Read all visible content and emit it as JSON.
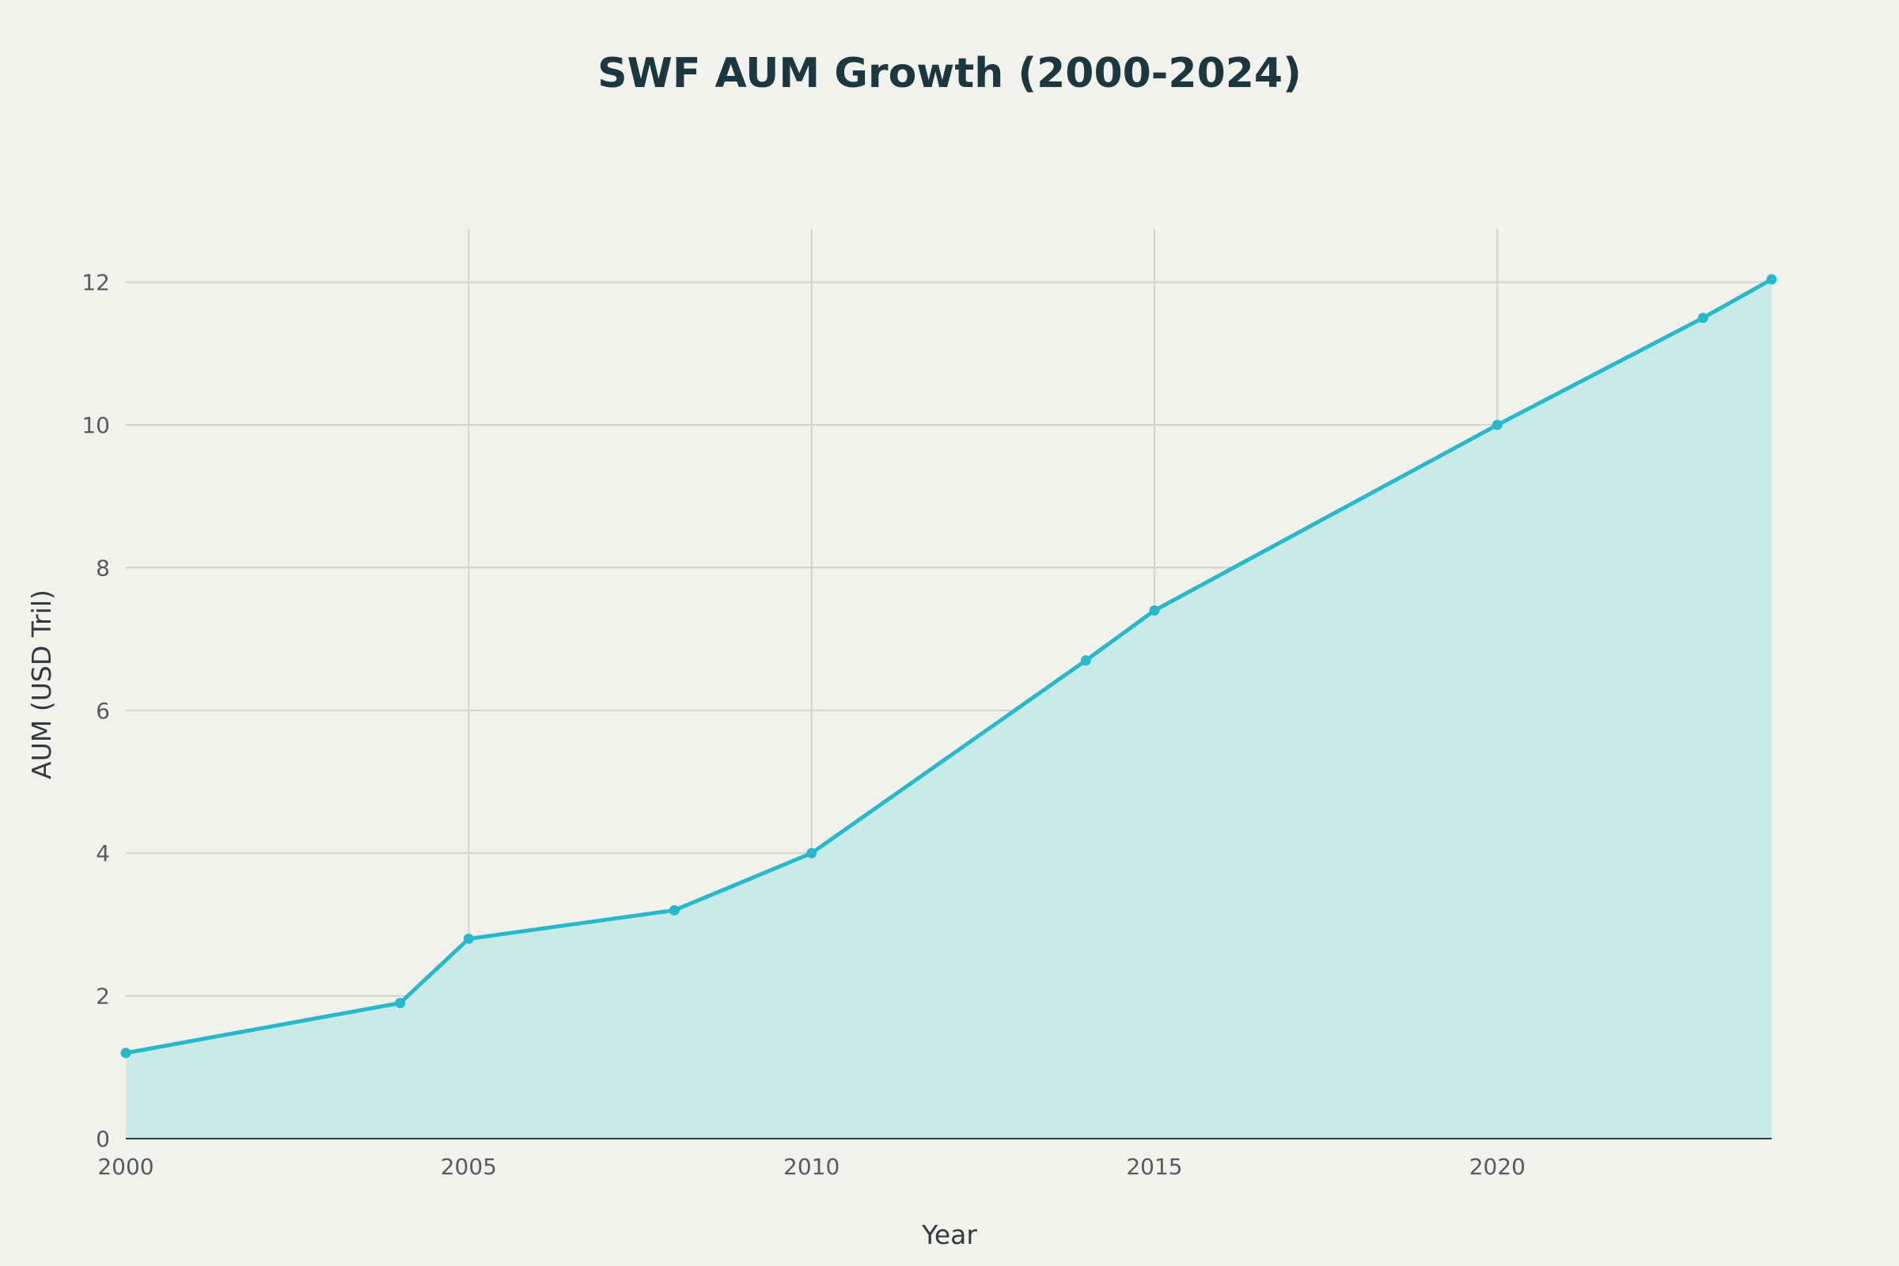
{
  "chart_data": {
    "type": "area",
    "title": "SWF AUM Growth (2000-2024)",
    "xlabel": "Year",
    "ylabel": "AUM (USD Tril)",
    "x": [
      2000,
      2004,
      2005,
      2008,
      2010,
      2014,
      2015,
      2020,
      2023,
      2024
    ],
    "series": [
      {
        "values": [
          1.2,
          1.9,
          2.8,
          3.2,
          4.0,
          6.7,
          7.4,
          10.0,
          11.5,
          12.04
        ]
      }
    ],
    "xlim": [
      2000,
      2024
    ],
    "ylim": [
      0,
      12.75
    ],
    "xticks": [
      "2000",
      "2005",
      "2010",
      "2015",
      "2020"
    ],
    "yticks": [
      "0",
      "2",
      "4",
      "6",
      "8",
      "10",
      "12"
    ],
    "grid": true,
    "legend": "none",
    "colors": {
      "line": "#26b8cc",
      "fill": "#c8e8e6",
      "background": "#f2f2ed",
      "title": "#1b3740"
    }
  }
}
